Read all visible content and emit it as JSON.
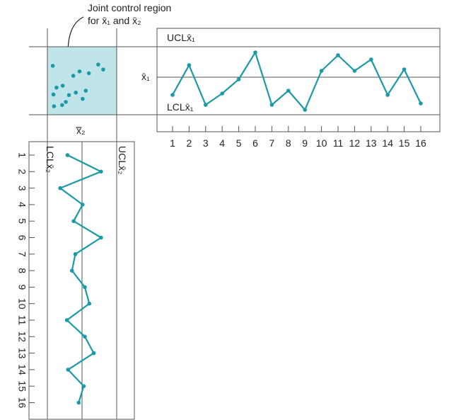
{
  "annotation": {
    "line1": "Joint control region",
    "line2": "for x̄₁ and x̄₂"
  },
  "labels": {
    "ucl_x1": "UCLx̄₁",
    "lcl_x1": "LCLx̄₁",
    "ucl_x2": "UCLx̄₂",
    "lcl_x2": "LCLx̄₂",
    "axis_x1": "x̄₁",
    "axis_x2": "x̿₂"
  },
  "colors": {
    "series": "#1a9aa6",
    "region": "#bfe4ea",
    "frame": "#555555"
  },
  "chart_data": [
    {
      "type": "line",
      "name": "x1_chart",
      "title": "",
      "x": [
        1,
        2,
        3,
        4,
        5,
        6,
        7,
        8,
        9,
        10,
        11,
        12,
        13,
        14,
        15,
        16
      ],
      "values": [
        2.2,
        6.4,
        0.8,
        2.4,
        4.4,
        8.2,
        0.8,
        2.8,
        0.1,
        5.6,
        7.8,
        5.6,
        7.2,
        2.2,
        5.8,
        1.0
      ],
      "ylim": [
        -1.2,
        9.8
      ],
      "ucl": 9.0,
      "lcl": -0.6,
      "center": 3.9,
      "tick_labels": [
        "1",
        "2",
        "3",
        "4",
        "5",
        "6",
        "7",
        "8",
        "9",
        "10",
        "11",
        "12",
        "13",
        "14",
        "15",
        "16"
      ]
    },
    {
      "type": "line",
      "name": "x2_chart",
      "title": "",
      "x": [
        1,
        2,
        3,
        4,
        5,
        6,
        7,
        8,
        9,
        10,
        11,
        12,
        13,
        14,
        15,
        16
      ],
      "values": [
        0.4,
        6.4,
        -0.9,
        3.1,
        1.5,
        6.4,
        1.8,
        1.2,
        3.5,
        4.3,
        0.3,
        3.5,
        5.1,
        0.5,
        3.3,
        2.4
      ],
      "ylim": [
        -4,
        10
      ],
      "ucl": 9.2,
      "lcl": -3.2,
      "center": 3.0,
      "tick_labels": [
        "1",
        "2",
        "3",
        "4",
        "5",
        "6",
        "7",
        "8",
        "9",
        "10",
        "11",
        "12",
        "13",
        "14",
        "15",
        "16"
      ]
    },
    {
      "type": "scatter",
      "name": "joint_region_points",
      "x": [
        0.3,
        7.6,
        4.6,
        6.1,
        8.4,
        3.6,
        1.9,
        0.9,
        4.0,
        0.4,
        2.9,
        5.6,
        5.1,
        2.4,
        1.8,
        0.5
      ],
      "y": [
        7.4,
        7.6,
        6.5,
        6.2,
        6.8,
        5.8,
        4.2,
        3.9,
        3.1,
        2.8,
        2.7,
        3.4,
        2.1,
        1.6,
        1.1,
        0.9
      ]
    }
  ]
}
